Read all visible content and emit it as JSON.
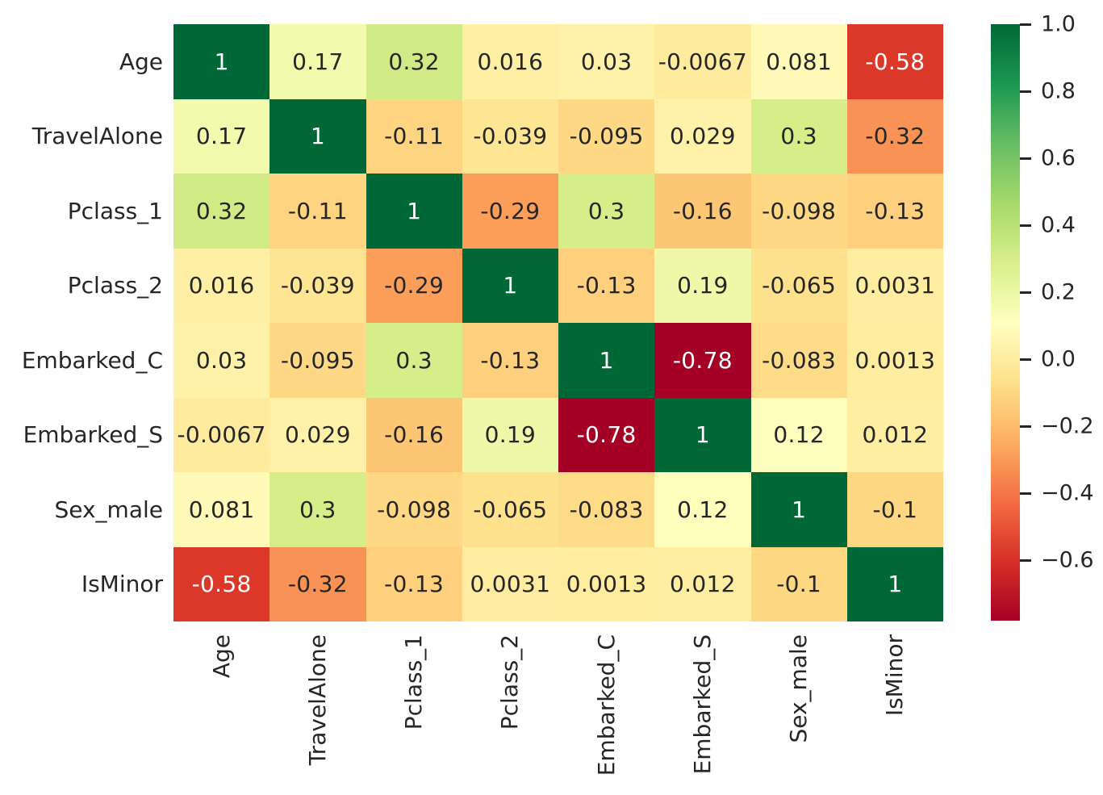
{
  "colors": {
    "background": "#ffffff",
    "dark_text": "#262626",
    "light_text": "#ffffff",
    "tick_color": "#262626"
  },
  "chart_data": {
    "type": "heatmap",
    "title": "",
    "xlabel": "",
    "ylabel": "",
    "labels": [
      "Age",
      "TravelAlone",
      "Pclass_1",
      "Pclass_2",
      "Embarked_C",
      "Embarked_S",
      "Sex_male",
      "IsMinor"
    ],
    "cells": [
      [
        "1",
        "0.17",
        "0.32",
        "0.016",
        "0.03",
        "-0.0067",
        "0.081",
        "-0.58"
      ],
      [
        "0.17",
        "1",
        "-0.11",
        "-0.039",
        "-0.095",
        "0.029",
        "0.3",
        "-0.32"
      ],
      [
        "0.32",
        "-0.11",
        "1",
        "-0.29",
        "0.3",
        "-0.16",
        "-0.098",
        "-0.13"
      ],
      [
        "0.016",
        "-0.039",
        "-0.29",
        "1",
        "-0.13",
        "0.19",
        "-0.065",
        "0.0031"
      ],
      [
        "0.03",
        "-0.095",
        "0.3",
        "-0.13",
        "1",
        "-0.78",
        "-0.083",
        "0.0013"
      ],
      [
        "-0.0067",
        "0.029",
        "-0.16",
        "0.19",
        "-0.78",
        "1",
        "0.12",
        "0.012"
      ],
      [
        "0.081",
        "0.3",
        "-0.098",
        "-0.065",
        "-0.083",
        "0.12",
        "1",
        "-0.1"
      ],
      [
        "-0.58",
        "-0.32",
        "-0.13",
        "0.0031",
        "0.0013",
        "0.012",
        "-0.1",
        "1"
      ]
    ],
    "vmin": -0.78,
    "vmax": 1.0,
    "colormap": {
      "name": "RdYlGn",
      "stops": [
        "#a50026",
        "#d73027",
        "#f46d43",
        "#fdae61",
        "#fee08b",
        "#ffffbf",
        "#d9ef8b",
        "#a6d96a",
        "#66bd63",
        "#1a9850",
        "#006837"
      ]
    },
    "colorbar": {
      "position": "right",
      "ticks": [
        {
          "label": "1.0",
          "value": 1.0
        },
        {
          "label": "0.8",
          "value": 0.8
        },
        {
          "label": "0.6",
          "value": 0.6
        },
        {
          "label": "0.4",
          "value": 0.4
        },
        {
          "label": "0.2",
          "value": 0.2
        },
        {
          "label": "0.0",
          "value": 0.0
        },
        {
          "label": "−0.2",
          "value": -0.2
        },
        {
          "label": "−0.4",
          "value": -0.4
        },
        {
          "label": "−0.6",
          "value": -0.6
        }
      ]
    }
  }
}
